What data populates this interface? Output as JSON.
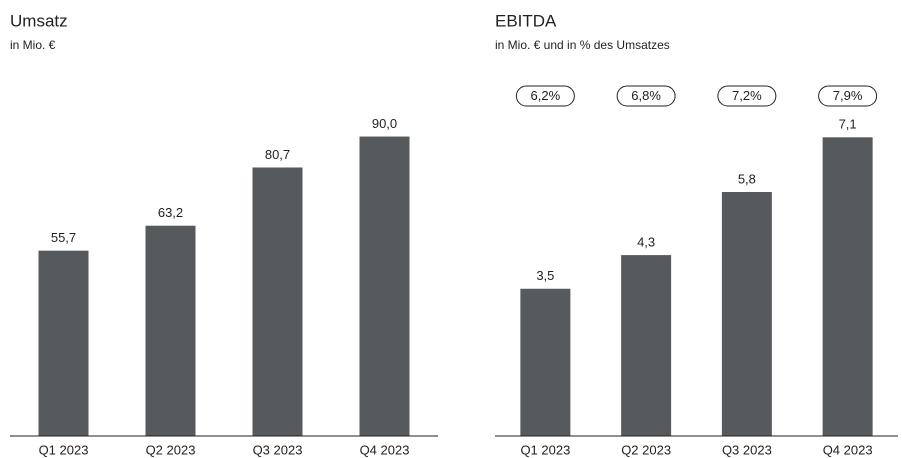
{
  "chart_data": [
    {
      "type": "bar",
      "title": "Umsatz",
      "subtitle": "in Mio. €",
      "categories": [
        "Q1 2023",
        "Q2 2023",
        "Q3 2023",
        "Q4 2023"
      ],
      "values": [
        55.7,
        63.2,
        80.7,
        90.0
      ],
      "value_labels": [
        "55,7",
        "63,2",
        "80,7",
        "90,0"
      ],
      "color": "#575a5c",
      "ylim": [
        0,
        110
      ]
    },
    {
      "type": "bar",
      "title": "EBITDA",
      "subtitle": "in Mio. € und in % des Umsatzes",
      "categories": [
        "Q1 2023",
        "Q2 2023",
        "Q3 2023",
        "Q4 2023"
      ],
      "values": [
        3.5,
        4.3,
        5.8,
        7.1
      ],
      "value_labels": [
        "3,5",
        "4,3",
        "5,8",
        "7,1"
      ],
      "margin_values": [
        6.2,
        6.8,
        7.2,
        7.9
      ],
      "margin_labels": [
        "6,2%",
        "6,8%",
        "7,2%",
        "7,9%"
      ],
      "color": "#575a5c",
      "ylim": [
        0,
        8.7
      ]
    }
  ]
}
